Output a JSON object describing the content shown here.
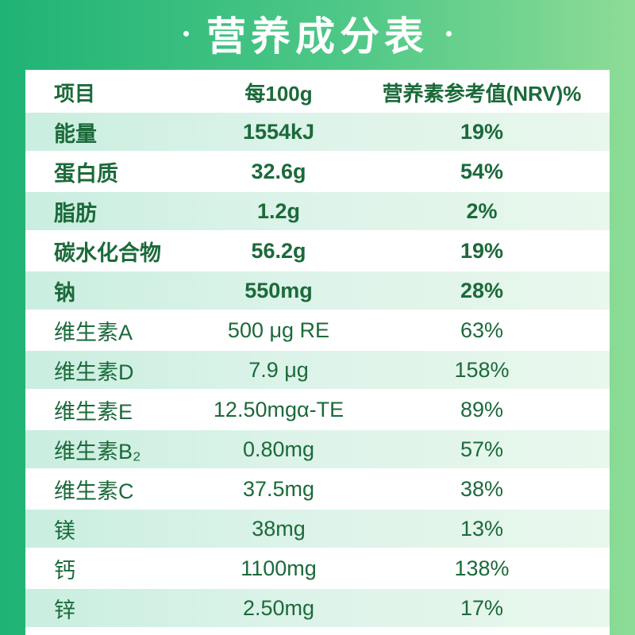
{
  "title": "营养成分表",
  "header": {
    "item": "项目",
    "per100g": "每100g",
    "nrv": "营养素参考值(NRV)%"
  },
  "rows": [
    {
      "item": "能量",
      "per100g": "1554kJ",
      "nrv": "19%"
    },
    {
      "item": "蛋白质",
      "per100g": "32.6g",
      "nrv": "54%"
    },
    {
      "item": "脂肪",
      "per100g": "1.2g",
      "nrv": "2%"
    },
    {
      "item": "碳水化合物",
      "per100g": "56.2g",
      "nrv": "19%"
    },
    {
      "item": "钠",
      "per100g": "550mg",
      "nrv": "28%"
    },
    {
      "item": "维生素A",
      "per100g": "500 μg RE",
      "nrv": "63%"
    },
    {
      "item": "维生素D",
      "per100g": "7.9 μg",
      "nrv": "158%"
    },
    {
      "item": "维生素E",
      "per100g": "12.50mgα-TE",
      "nrv": "89%"
    },
    {
      "item": "维生素B₂",
      "per100g": "0.80mg",
      "nrv": "57%"
    },
    {
      "item": "维生素C",
      "per100g": "37.5mg",
      "nrv": "38%"
    },
    {
      "item": "镁",
      "per100g": "38mg",
      "nrv": "13%"
    },
    {
      "item": "钙",
      "per100g": "1100mg",
      "nrv": "138%"
    },
    {
      "item": "锌",
      "per100g": "2.50mg",
      "nrv": "17%"
    }
  ]
}
